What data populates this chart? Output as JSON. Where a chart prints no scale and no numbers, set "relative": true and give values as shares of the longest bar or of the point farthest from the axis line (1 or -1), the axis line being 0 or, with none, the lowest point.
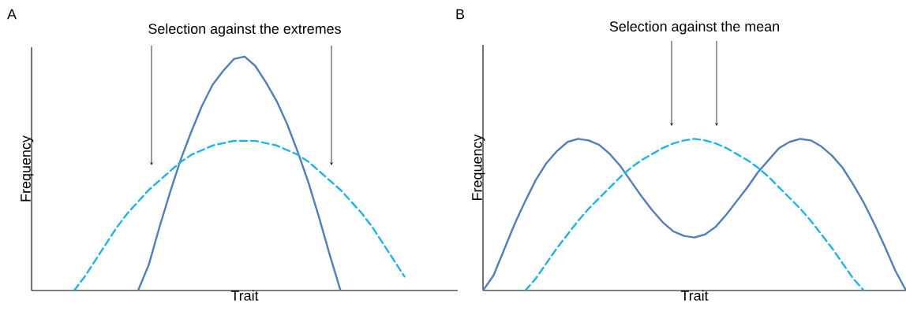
{
  "chart_data": [
    {
      "type": "line",
      "relative": true,
      "title": "Selection against the extremes",
      "xlabel": "Trait",
      "ylabel": "Frequency",
      "annotations": [
        "A"
      ],
      "categories": [
        null,
        null,
        null,
        null,
        null,
        null,
        null,
        null,
        null,
        null,
        null,
        null,
        null,
        null,
        null,
        null,
        null,
        null,
        null,
        null,
        null,
        null,
        null,
        null,
        null,
        null,
        null,
        null,
        null,
        null,
        null,
        null,
        null,
        null,
        null,
        null,
        null,
        null,
        null,
        null,
        null
      ],
      "series": [
        {
          "color": "#4f7fc0",
          "line_style": "solid",
          "values": [
            null,
            null,
            null,
            null,
            null,
            null,
            null,
            null,
            null,
            null,
            0,
            0.11,
            0.27,
            0.42,
            0.56,
            0.68,
            0.79,
            0.88,
            0.94,
            0.99,
            1,
            0.96,
            0.89,
            0.81,
            0.71,
            0.59,
            0.46,
            0.31,
            0.15,
            0,
            null,
            null,
            null,
            null,
            null,
            null,
            null,
            null,
            null,
            null,
            null
          ]
        },
        {
          "color": "#19b5ee",
          "line_style": "dashed",
          "values": [
            null,
            null,
            null,
            null,
            0,
            0.06,
            0.13,
            0.2,
            0.27,
            0.33,
            0.38,
            0.43,
            0.47,
            0.51,
            0.55,
            0.58,
            0.6,
            0.62,
            0.63,
            0.64,
            0.64,
            0.64,
            0.63,
            0.62,
            0.6,
            0.58,
            0.55,
            0.51,
            0.47,
            0.43,
            0.38,
            0.33,
            0.27,
            0.2,
            0.13,
            0.06,
            null,
            null,
            null,
            null,
            null
          ]
        }
      ]
    },
    {
      "type": "line",
      "relative": true,
      "title": "Selection against the mean",
      "xlabel": "Trait",
      "ylabel": "Frequency",
      "annotations": [
        "B"
      ],
      "categories": [
        null,
        null,
        null,
        null,
        null,
        null,
        null,
        null,
        null,
        null,
        null,
        null,
        null,
        null,
        null,
        null,
        null,
        null,
        null,
        null,
        null,
        null,
        null,
        null,
        null,
        null,
        null,
        null,
        null,
        null,
        null,
        null,
        null,
        null,
        null,
        null,
        null,
        null,
        null,
        null,
        null
      ],
      "series": [
        {
          "color": "#4f7fc0",
          "line_style": "solid",
          "values": [
            0,
            0.1,
            0.27,
            0.44,
            0.59,
            0.73,
            0.84,
            0.92,
            0.98,
            1,
            0.99,
            0.96,
            0.9,
            0.82,
            0.72,
            0.62,
            0.53,
            0.45,
            0.39,
            0.36,
            0.35,
            0.37,
            0.42,
            0.5,
            0.59,
            0.68,
            0.78,
            0.86,
            0.94,
            0.98,
            1,
            0.99,
            0.95,
            0.89,
            0.81,
            0.7,
            0.58,
            0.44,
            0.29,
            0.13,
            0
          ]
        },
        {
          "color": "#19b5ee",
          "line_style": "dashed",
          "values": [
            null,
            null,
            null,
            null,
            0,
            0.08,
            0.18,
            0.28,
            0.37,
            0.46,
            0.54,
            0.61,
            0.68,
            0.75,
            0.81,
            0.86,
            0.9,
            0.94,
            0.97,
            0.99,
            1,
            0.99,
            0.97,
            0.94,
            0.9,
            0.86,
            0.81,
            0.75,
            0.68,
            0.61,
            0.54,
            0.46,
            0.37,
            0.28,
            0.18,
            0.08,
            0,
            null,
            null,
            null,
            null
          ]
        }
      ]
    }
  ]
}
